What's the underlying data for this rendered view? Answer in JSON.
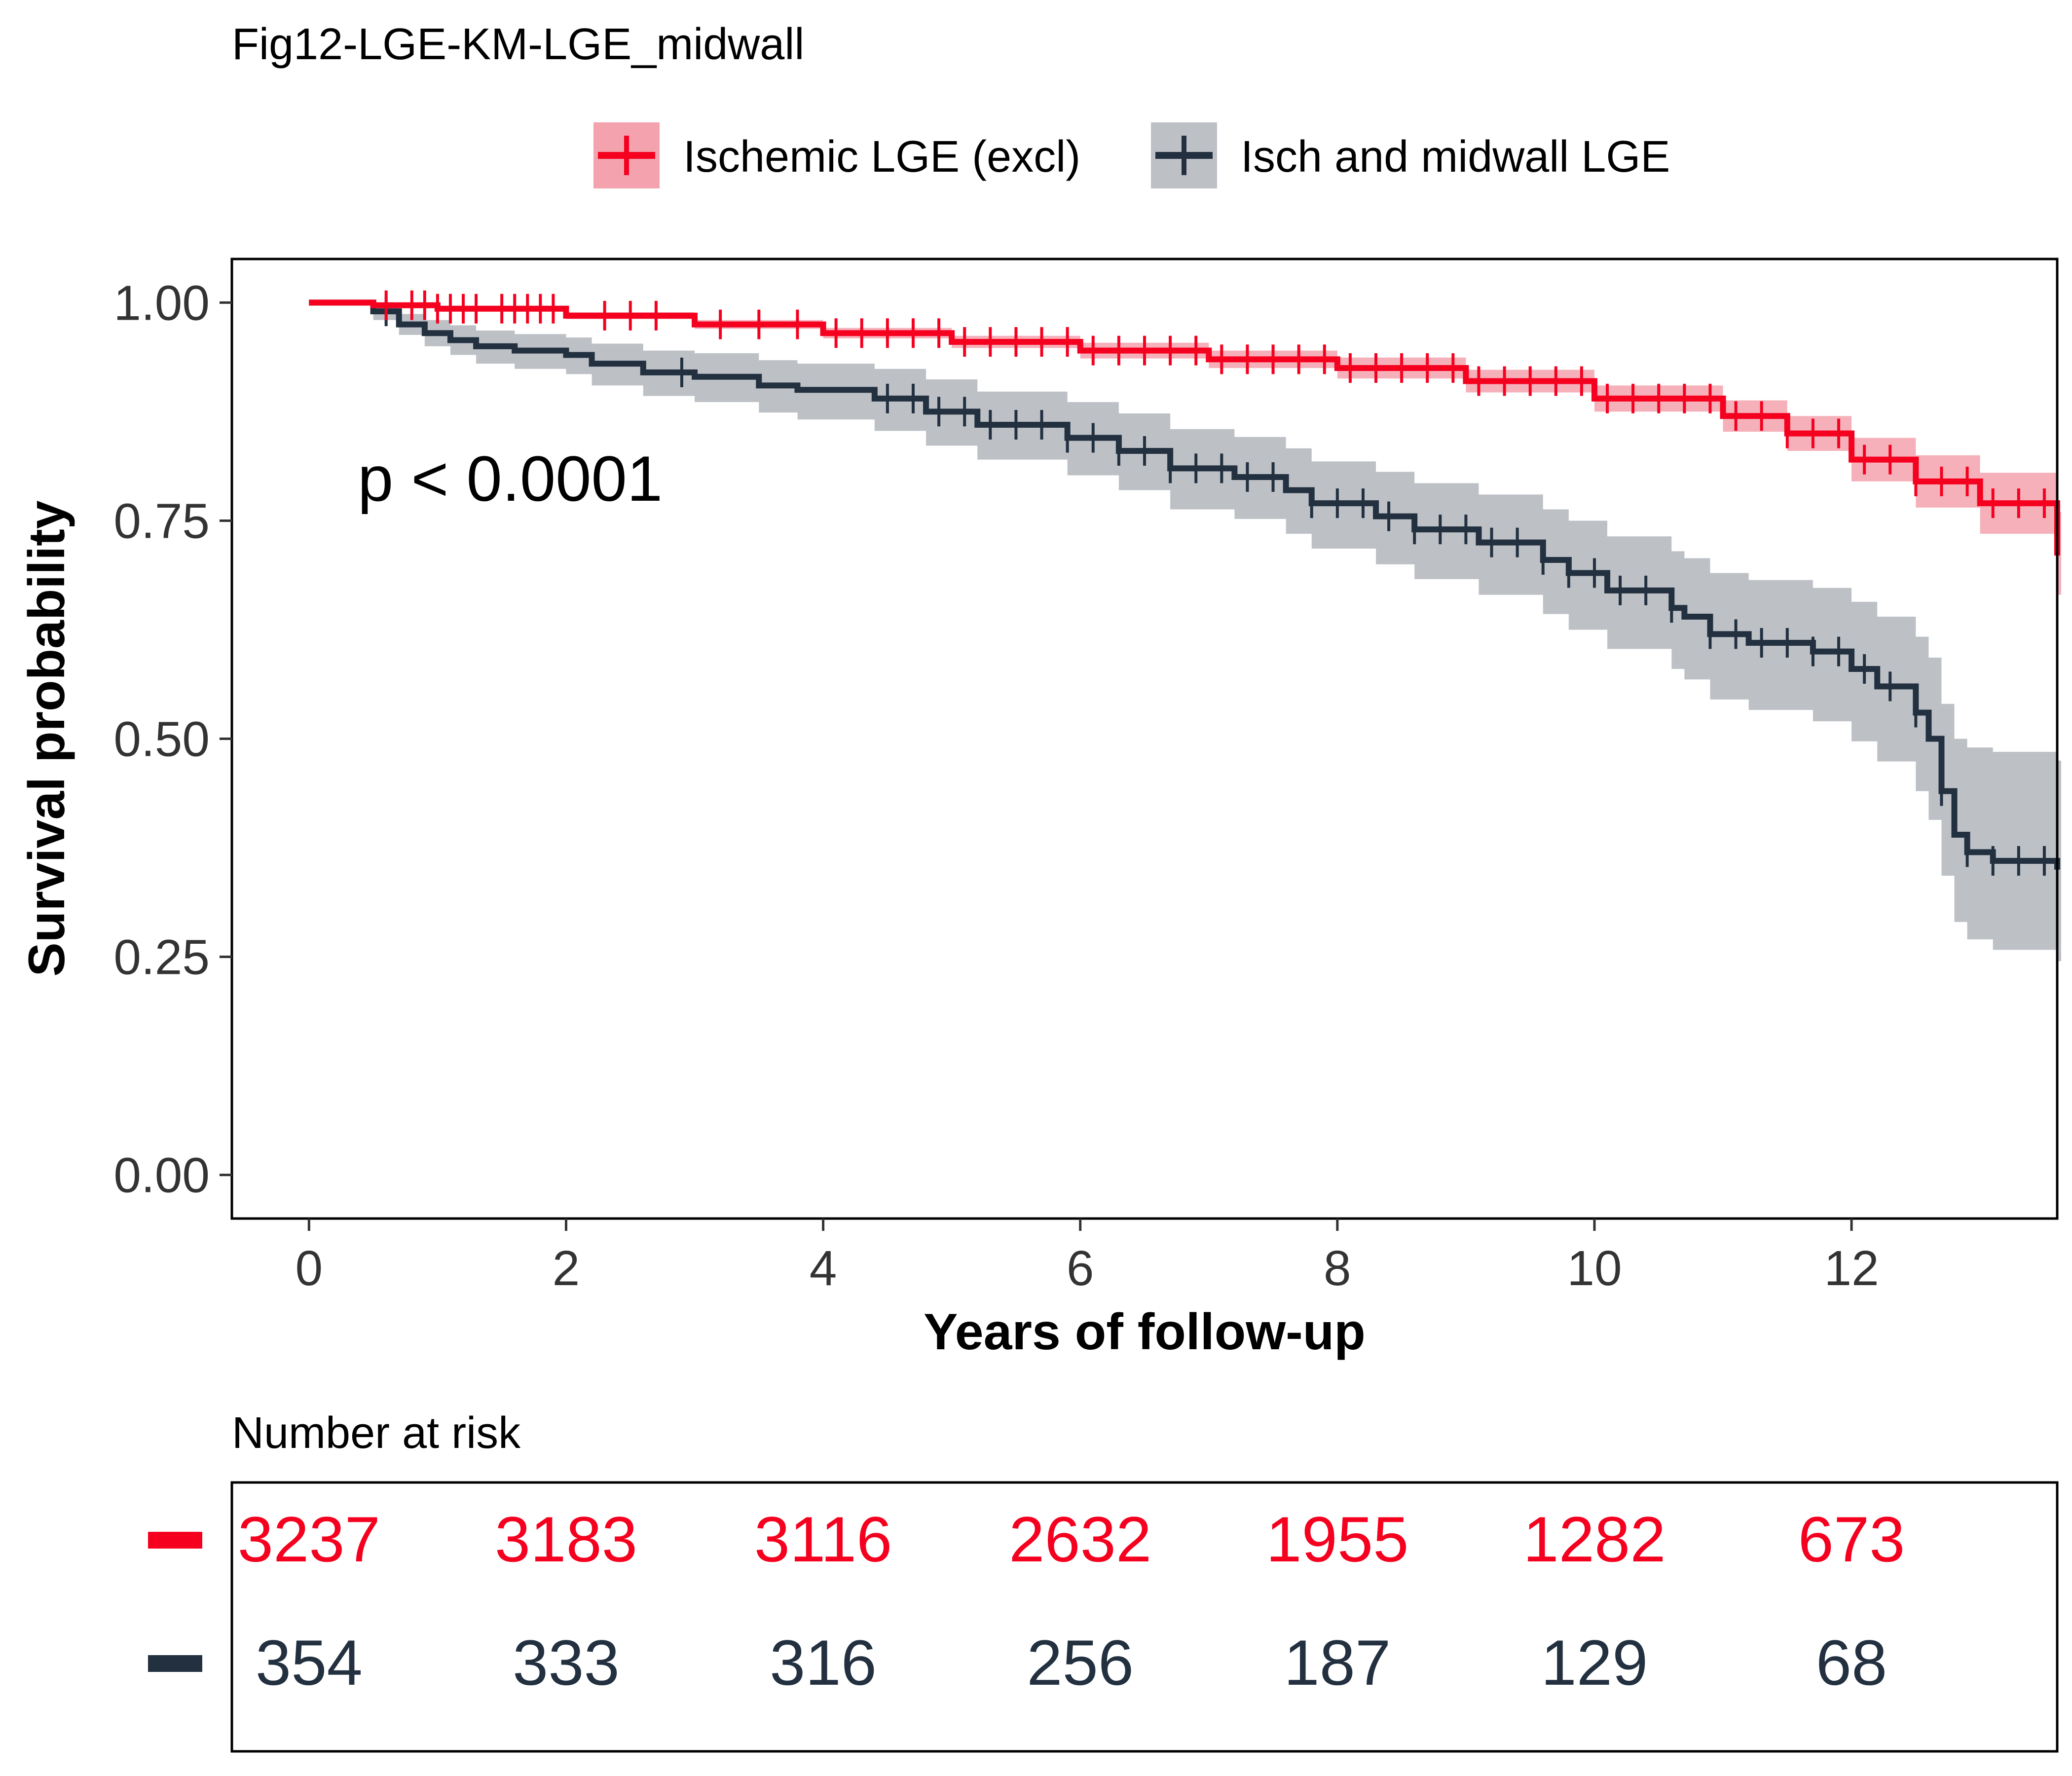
{
  "chart_data": {
    "type": "line",
    "title": "Fig12-LGE-KM-LGE_midwall",
    "xlabel": "Years of follow-up",
    "ylabel": "Survival probability",
    "xlim": [
      -0.6,
      13.6
    ],
    "ylim": [
      -0.05,
      1.05
    ],
    "xticks": [
      0,
      2,
      4,
      6,
      8,
      10,
      12
    ],
    "xtick_labels": [
      "0",
      "2",
      "4",
      "6",
      "8",
      "10",
      "12"
    ],
    "yticks": [
      0,
      0.25,
      0.5,
      0.75,
      1.0
    ],
    "ytick_labels": [
      "0.00",
      "0.25",
      "0.50",
      "0.75",
      "1.00"
    ],
    "grid": false,
    "legend_position": "top",
    "annotation": "p < 0.0001",
    "series": [
      {
        "name": "Ischemic LGE (excl)",
        "color": "#F5001F",
        "band_color": "#F4A2AE",
        "x": [
          0,
          0.5,
          1.0,
          2.0,
          3.0,
          4.0,
          5.0,
          6.0,
          7.0,
          8.0,
          9.0,
          10.0,
          11.0,
          11.5,
          12.0,
          12.5,
          13.0,
          13.6
        ],
        "y": [
          1.0,
          0.997,
          0.993,
          0.985,
          0.975,
          0.965,
          0.955,
          0.945,
          0.935,
          0.925,
          0.91,
          0.89,
          0.87,
          0.85,
          0.82,
          0.795,
          0.77,
          0.71
        ],
        "lower": [
          1.0,
          0.995,
          0.99,
          0.981,
          0.97,
          0.959,
          0.948,
          0.936,
          0.925,
          0.913,
          0.897,
          0.875,
          0.852,
          0.83,
          0.795,
          0.765,
          0.735,
          0.665
        ],
        "upper": [
          1.0,
          0.999,
          0.996,
          0.989,
          0.98,
          0.971,
          0.962,
          0.954,
          0.945,
          0.937,
          0.923,
          0.905,
          0.888,
          0.87,
          0.845,
          0.825,
          0.805,
          0.76
        ],
        "censor_x": [
          0.6,
          0.8,
          0.9,
          1.0,
          1.1,
          1.2,
          1.3,
          1.5,
          1.6,
          1.7,
          1.8,
          1.9,
          2.3,
          2.5,
          2.7,
          3.2,
          3.5,
          3.8,
          4.1,
          4.3,
          4.5,
          4.7,
          4.9,
          5.1,
          5.3,
          5.5,
          5.7,
          5.9,
          6.1,
          6.3,
          6.5,
          6.7,
          6.9,
          7.1,
          7.3,
          7.5,
          7.7,
          7.9,
          8.1,
          8.3,
          8.5,
          8.7,
          8.9,
          9.1,
          9.3,
          9.5,
          9.7,
          9.9,
          10.1,
          10.3,
          10.5,
          10.7,
          10.9,
          11.1,
          11.3,
          11.5,
          11.7,
          11.9,
          12.1,
          12.3,
          12.5,
          12.7,
          12.9,
          13.1,
          13.3,
          13.5
        ]
      },
      {
        "name": "Isch and midwall LGE",
        "color": "#223040",
        "band_color": "#BDC1C6",
        "x": [
          0,
          0.5,
          0.7,
          0.9,
          1.1,
          1.3,
          1.6,
          2.0,
          2.2,
          2.6,
          3.0,
          3.5,
          3.8,
          4.4,
          4.8,
          5.2,
          5.9,
          6.3,
          6.7,
          7.2,
          7.6,
          7.8,
          8.3,
          8.6,
          9.1,
          9.6,
          9.8,
          10.1,
          10.6,
          10.7,
          10.9,
          11.2,
          11.7,
          12.0,
          12.2,
          12.5,
          12.6,
          12.7,
          12.8,
          12.9,
          13.1,
          13.6
        ],
        "y": [
          1.0,
          0.99,
          0.975,
          0.965,
          0.957,
          0.95,
          0.945,
          0.94,
          0.93,
          0.92,
          0.915,
          0.905,
          0.9,
          0.89,
          0.875,
          0.86,
          0.845,
          0.83,
          0.81,
          0.8,
          0.785,
          0.77,
          0.755,
          0.74,
          0.725,
          0.705,
          0.69,
          0.67,
          0.65,
          0.64,
          0.62,
          0.61,
          0.6,
          0.58,
          0.56,
          0.53,
          0.5,
          0.44,
          0.39,
          0.37,
          0.36,
          0.35
        ],
        "lower": [
          1.0,
          0.98,
          0.963,
          0.95,
          0.94,
          0.93,
          0.924,
          0.918,
          0.905,
          0.893,
          0.886,
          0.874,
          0.866,
          0.853,
          0.836,
          0.82,
          0.802,
          0.785,
          0.763,
          0.752,
          0.735,
          0.718,
          0.7,
          0.683,
          0.665,
          0.643,
          0.625,
          0.603,
          0.58,
          0.568,
          0.545,
          0.533,
          0.52,
          0.497,
          0.474,
          0.44,
          0.407,
          0.343,
          0.29,
          0.27,
          0.258,
          0.245
        ],
        "upper": [
          1.0,
          0.998,
          0.987,
          0.98,
          0.974,
          0.968,
          0.964,
          0.96,
          0.953,
          0.945,
          0.942,
          0.934,
          0.93,
          0.924,
          0.912,
          0.898,
          0.886,
          0.873,
          0.855,
          0.846,
          0.833,
          0.818,
          0.806,
          0.793,
          0.78,
          0.763,
          0.75,
          0.732,
          0.715,
          0.707,
          0.69,
          0.682,
          0.673,
          0.657,
          0.64,
          0.617,
          0.593,
          0.54,
          0.5,
          0.49,
          0.485,
          0.475
        ],
        "censor_x": [
          0.6,
          2.9,
          4.5,
          4.7,
          4.9,
          5.1,
          5.3,
          5.5,
          5.7,
          5.9,
          6.1,
          6.3,
          6.5,
          6.7,
          6.9,
          7.1,
          7.3,
          7.5,
          7.8,
          8.0,
          8.2,
          8.4,
          8.6,
          8.8,
          9.0,
          9.2,
          9.4,
          9.6,
          9.8,
          10.0,
          10.2,
          10.4,
          10.6,
          10.9,
          11.1,
          11.3,
          11.5,
          11.7,
          11.9,
          12.1,
          12.3,
          12.5,
          12.7,
          12.9,
          13.1,
          13.3,
          13.5
        ]
      }
    ],
    "risk_table": {
      "title": "Number at risk",
      "times": [
        0,
        2,
        4,
        6,
        8,
        10,
        12
      ],
      "rows": [
        {
          "color": "#F5001F",
          "values": [
            "3237",
            "3183",
            "3116",
            "2632",
            "1955",
            "1282",
            "673"
          ]
        },
        {
          "color": "#223040",
          "values": [
            "354",
            "333",
            "316",
            "256",
            "187",
            "129",
            "68"
          ]
        }
      ]
    }
  }
}
